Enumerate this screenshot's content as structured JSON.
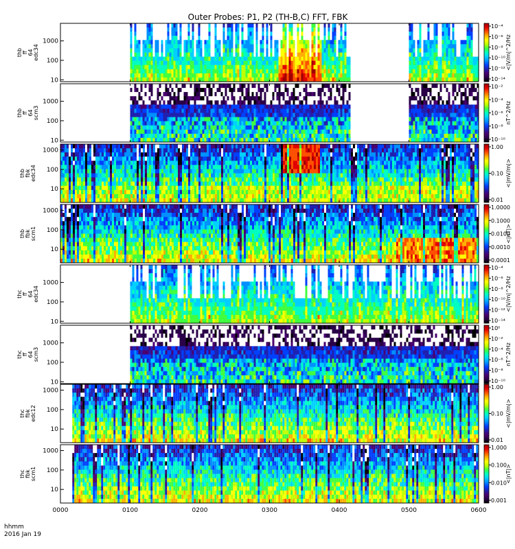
{
  "chart_data": {
    "type": "heatmap",
    "title": "Outer Probes: P1, P2 (TH-B,C) FFT, FBK",
    "xlabel_line1": "hhmm",
    "xlabel_line2": "2016 Jan 19",
    "x_range": [
      "0000",
      "0600"
    ],
    "x_ticks": [
      "0000",
      "0100",
      "0200",
      "0300",
      "0400",
      "0500",
      "0600"
    ],
    "panels": [
      {
        "ylabel": [
          "thb",
          "ff",
          "64",
          "edc34"
        ],
        "ylim": [
          8,
          8000
        ],
        "yscale": "log",
        "yticks": [
          "10",
          "100",
          "1000"
        ],
        "ytick_values": [
          10,
          100,
          1000
        ],
        "colorbar_label": "<|V/m|^2/Hz",
        "colorbar_ticks": [
          "10⁻⁴",
          "10⁻⁶",
          "10⁻⁸",
          "10⁻¹⁰",
          "10⁻¹²",
          "10⁻¹⁴"
        ],
        "data_coverage_hours": [
          [
            1.0,
            4.15
          ],
          [
            5.0,
            6.0
          ]
        ],
        "style": "sparse"
      },
      {
        "ylabel": [
          "thb",
          "ff",
          "64",
          "scm3"
        ],
        "ylim": [
          8,
          8000
        ],
        "yscale": "log",
        "yticks": [
          "10",
          "100",
          "1000"
        ],
        "ytick_values": [
          10,
          100,
          1000
        ],
        "colorbar_label": "nT^2/Hz",
        "colorbar_ticks": [
          "10⁻²",
          "10⁻⁴",
          "10⁻⁶",
          "10⁻⁸",
          "10⁻¹⁰"
        ],
        "data_coverage_hours": [
          [
            1.0,
            4.15
          ],
          [
            5.0,
            6.0
          ]
        ],
        "style": "dense"
      },
      {
        "ylabel": [
          "thb",
          "fbk",
          "edc34"
        ],
        "ylim": [
          2,
          2000
        ],
        "yscale": "log",
        "yticks": [
          "10",
          "100",
          "1000"
        ],
        "ytick_values": [
          10,
          100,
          1000
        ],
        "colorbar_label": "<|mV/m|>",
        "colorbar_ticks": [
          "1.00",
          "0.10",
          "0.01"
        ],
        "data_coverage_hours": [
          [
            0.0,
            6.0
          ]
        ],
        "style": "full"
      },
      {
        "ylabel": [
          "thb",
          "fbk",
          "scm1"
        ],
        "ylim": [
          2,
          2000
        ],
        "yscale": "log",
        "yticks": [
          "10",
          "100",
          "1000"
        ],
        "ytick_values": [
          10,
          100,
          1000
        ],
        "colorbar_label": "<|nT|>",
        "colorbar_ticks": [
          "1.0000",
          "0.1000",
          "0.0100",
          "0.0010",
          "0.0001"
        ],
        "data_coverage_hours": [
          [
            0.0,
            6.0
          ]
        ],
        "style": "full"
      },
      {
        "ylabel": [
          "thc",
          "ff",
          "64",
          "edc34"
        ],
        "ylim": [
          8,
          8000
        ],
        "yscale": "log",
        "yticks": [
          "10",
          "100",
          "1000"
        ],
        "ytick_values": [
          10,
          100,
          1000
        ],
        "colorbar_label": "<|V/m|^2/Hz",
        "colorbar_ticks": [
          "10⁻⁴",
          "10⁻⁶",
          "10⁻⁸",
          "10⁻¹⁰",
          "10⁻¹²",
          "10⁻¹⁴"
        ],
        "data_coverage_hours": [
          [
            1.0,
            6.0
          ]
        ],
        "style": "sparse"
      },
      {
        "ylabel": [
          "thc",
          "ff",
          "64",
          "scm3"
        ],
        "ylim": [
          8,
          8000
        ],
        "yscale": "log",
        "yticks": [
          "10",
          "100",
          "1000"
        ],
        "ytick_values": [
          10,
          100,
          1000
        ],
        "colorbar_label": "nT^2/Hz",
        "colorbar_ticks": [
          "10⁰",
          "10⁻²",
          "10⁻⁴",
          "10⁻⁶",
          "10⁻⁸",
          "10⁻¹⁰"
        ],
        "data_coverage_hours": [
          [
            1.0,
            6.0
          ]
        ],
        "style": "dense"
      },
      {
        "ylabel": [
          "thc",
          "fbk",
          "edc12"
        ],
        "ylim": [
          2,
          2000
        ],
        "yscale": "log",
        "yticks": [
          "10",
          "100",
          "1000"
        ],
        "ytick_values": [
          10,
          100,
          1000
        ],
        "colorbar_label": "<|mV/m|>",
        "colorbar_ticks": [
          "1.00",
          "0.10",
          "0.01"
        ],
        "data_coverage_hours": [
          [
            0.17,
            6.0
          ]
        ],
        "style": "full"
      },
      {
        "ylabel": [
          "thc",
          "fbk",
          "scm1"
        ],
        "ylim": [
          2,
          2000
        ],
        "yscale": "log",
        "yticks": [
          "10",
          "100",
          "1000"
        ],
        "ytick_values": [
          10,
          100,
          1000
        ],
        "colorbar_label": "<|nT|>",
        "colorbar_ticks": [
          "1.000",
          "0.100",
          "0.010",
          "0.001"
        ],
        "data_coverage_hours": [
          [
            0.17,
            6.0
          ]
        ],
        "style": "full"
      }
    ],
    "colormap": [
      "#000000",
      "#2a0048",
      "#4a0070",
      "#2020b0",
      "#0040ff",
      "#0090ff",
      "#00d0ff",
      "#00ffc0",
      "#40ff40",
      "#c0ff00",
      "#ffff00",
      "#ffb000",
      "#ff5000",
      "#e00000",
      "#a00000"
    ]
  }
}
